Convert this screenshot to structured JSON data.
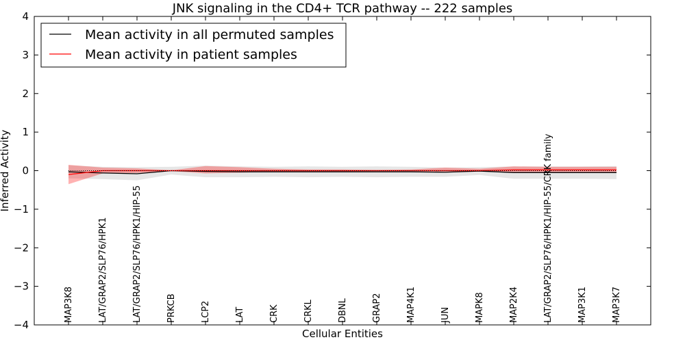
{
  "chart_data": {
    "type": "line",
    "title": "JNK signaling in the CD4+ TCR pathway -- 222 samples",
    "xlabel": "Cellular Entities",
    "ylabel": "Inferred Activity",
    "ylim": [
      -4,
      4
    ],
    "yticks": [
      4,
      3,
      2,
      1,
      0,
      -1,
      -2,
      -3,
      -4
    ],
    "ytick_labels": [
      "4",
      "3",
      "2",
      "1",
      "0",
      "−1",
      "−2",
      "−3",
      "−4"
    ],
    "legend_position": "top-left",
    "categories": [
      "MAP3K8",
      "LAT/GRAP2/SLP76/HPK1",
      "LAT/GRAP2/SLP76/HPK1/HIP-55",
      "PRKCB",
      "LCP2",
      "LAT",
      "CRK",
      "CRKL",
      "DBNL",
      "GRAP2",
      "MAP4K1",
      "JUN",
      "MAPK8",
      "MAP2K4",
      "LAT/GRAP2/SLP76/HPK1/HIP-55/CRK family",
      "MAP3K1",
      "MAP3K7"
    ],
    "series": [
      {
        "name": "Mean activity in all permuted samples",
        "color": "#000000",
        "band_color": "#c8c8c8",
        "values": [
          -0.03,
          -0.06,
          -0.08,
          0.0,
          -0.02,
          -0.03,
          -0.03,
          -0.03,
          -0.03,
          -0.03,
          -0.03,
          -0.04,
          -0.01,
          -0.05,
          -0.05,
          -0.05,
          -0.05
        ],
        "band_lower": [
          -0.2,
          -0.22,
          -0.25,
          -0.1,
          -0.17,
          -0.17,
          -0.16,
          -0.17,
          -0.16,
          -0.17,
          -0.16,
          -0.16,
          -0.11,
          -0.21,
          -0.21,
          -0.21,
          -0.22
        ],
        "band_upper": [
          0.14,
          0.1,
          0.09,
          0.1,
          0.13,
          0.11,
          0.1,
          0.11,
          0.1,
          0.11,
          0.1,
          0.08,
          0.09,
          0.11,
          0.11,
          0.11,
          0.12
        ]
      },
      {
        "name": "Mean activity in patient samples",
        "color": "#ff0000",
        "band_color": "#ff0000",
        "values": [
          -0.1,
          0.0,
          0.0,
          0.0,
          0.0,
          0.0,
          0.0,
          0.0,
          0.0,
          0.0,
          0.0,
          0.0,
          0.0,
          0.02,
          0.02,
          0.02,
          0.02
        ],
        "band_lower": [
          -0.35,
          -0.07,
          -0.06,
          -0.01,
          -0.07,
          -0.05,
          -0.03,
          -0.02,
          -0.02,
          -0.01,
          -0.01,
          -0.02,
          -0.02,
          -0.04,
          -0.04,
          -0.04,
          -0.04
        ],
        "band_upper": [
          0.15,
          0.08,
          0.06,
          0.01,
          0.12,
          0.09,
          0.05,
          0.03,
          0.03,
          0.02,
          0.03,
          0.08,
          0.05,
          0.11,
          0.1,
          0.1,
          0.1
        ]
      }
    ]
  }
}
